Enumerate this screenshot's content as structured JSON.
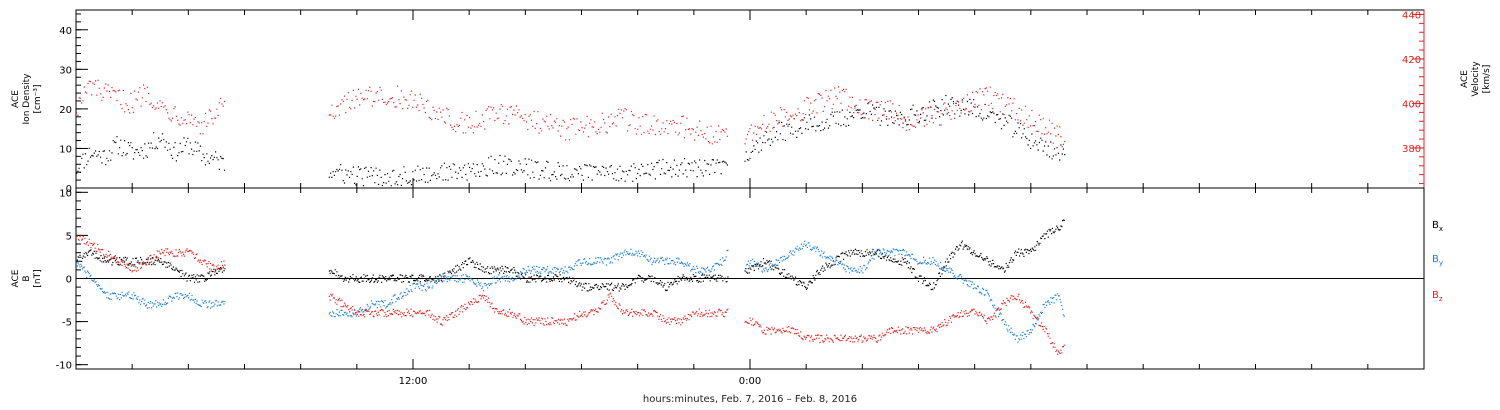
{
  "colors": {
    "black": "#000000",
    "blue": "#1f7fd8",
    "red": "#e0221e",
    "axis": "#000000"
  },
  "x_axis": {
    "label": "hours:minutes, Feb.  7, 2016 – Feb.  8, 2016",
    "range_hours": [
      0,
      48
    ],
    "major_ticks": [
      {
        "hour": 12,
        "label": "12:00"
      },
      {
        "hour": 24,
        "label": "0:00"
      }
    ],
    "minor_ticks_hours": [
      2,
      4,
      6,
      8,
      10,
      14,
      16,
      18,
      20,
      22,
      26,
      28,
      30,
      32,
      34,
      36,
      38,
      40,
      42,
      44,
      46
    ]
  },
  "chart_data": [
    {
      "type": "scatter",
      "title": "",
      "ylabel": [
        "ACE",
        "Ion Density",
        "[cm⁻³]"
      ],
      "ylim": [
        0,
        45
      ],
      "yticks": [
        0,
        10,
        20,
        30,
        40
      ],
      "y2label": [
        "ACE",
        "Velocity",
        "[km/s]"
      ],
      "y2lim": [
        362,
        442
      ],
      "y2ticks": [
        380,
        400,
        420,
        440
      ],
      "series": [
        {
          "color_key": "black",
          "axis": "left",
          "segments": [
            {
              "x": [
                0,
                0.5,
                1.0,
                1.5,
                2.0,
                2.5,
                3.0,
                3.5,
                4.0,
                4.5,
                5.0,
                5.3
              ],
              "y": [
                5,
                9,
                8,
                11,
                9,
                10,
                13,
                9,
                11,
                8,
                7,
                6
              ]
            },
            {
              "x": [
                9.0,
                10,
                11,
                12,
                13,
                14,
                15,
                16,
                17,
                18,
                19,
                20,
                21,
                22,
                23.2
              ],
              "y": [
                4,
                3,
                3,
                3,
                4,
                4,
                6,
                5,
                4,
                4,
                4,
                4,
                5,
                5,
                5
              ]
            },
            {
              "x": [
                23.8,
                24,
                25,
                26,
                27,
                27.5,
                28,
                29,
                30,
                31,
                32,
                33,
                34,
                35.2
              ],
              "y": [
                8,
                10,
                14,
                16,
                17,
                18,
                20,
                17,
                19,
                21,
                20,
                17,
                12,
                8
              ]
            }
          ]
        },
        {
          "color_key": "red",
          "axis": "right",
          "segments": [
            {
              "x": [
                0,
                0.5,
                1.0,
                1.5,
                2.0,
                2.5,
                3.0,
                3.5,
                4.0,
                4.5,
                5.0,
                5.3
              ],
              "y": [
                398,
                408,
                404,
                402,
                400,
                406,
                398,
                396,
                394,
                390,
                396,
                400
              ]
            },
            {
              "x": [
                9.0,
                9.5,
                10,
                10.5,
                11,
                11.5,
                12,
                12.5,
                13,
                13.5,
                14,
                14.5,
                15,
                15.5,
                16,
                16.5,
                17,
                17.5,
                18,
                18.5,
                19,
                19.5,
                20,
                20.5,
                21,
                21.5,
                22,
                22.5,
                23,
                23.2
              ],
              "y": [
                397,
                400,
                402,
                403,
                404,
                403,
                401,
                398,
                395,
                392,
                391,
                393,
                395,
                396,
                393,
                391,
                390,
                388,
                389,
                390,
                392,
                393,
                391,
                390,
                391,
                390,
                388,
                387,
                386,
                386
              ]
            },
            {
              "x": [
                23.8,
                24,
                24.5,
                25,
                25.5,
                26,
                26.5,
                27,
                27.5,
                28,
                28.5,
                29,
                29.5,
                30,
                30.5,
                31,
                31.5,
                32,
                32.5,
                33,
                33.5,
                34,
                34.5,
                35,
                35.2
              ],
              "y": [
                384,
                387,
                390,
                393,
                396,
                398,
                400,
                403,
                401,
                398,
                396,
                397,
                393,
                392,
                394,
                396,
                398,
                401,
                403,
                399,
                397,
                392,
                389,
                385,
                384
              ]
            }
          ]
        }
      ]
    },
    {
      "type": "scatter",
      "title": "",
      "ylabel": [
        "ACE",
        "B",
        "[nT]"
      ],
      "ylim": [
        -10.5,
        10.5
      ],
      "yticks": [
        -10,
        -5,
        0,
        5,
        10
      ],
      "zero_line": true,
      "legend": [
        {
          "name": "Bx",
          "color_key": "black"
        },
        {
          "name": "By",
          "color_key": "blue"
        },
        {
          "name": "Bz",
          "color_key": "red"
        }
      ],
      "series": [
        {
          "name": "Bx",
          "color_key": "black",
          "segments": [
            {
              "x": [
                0,
                0.5,
                1.0,
                1.5,
                2.0,
                2.5,
                3.0,
                3.5,
                4.0,
                4.5,
                5.0,
                5.3
              ],
              "y": [
                2,
                3,
                2,
                2,
                2,
                2,
                2,
                1,
                0,
                0,
                1,
                1
              ]
            },
            {
              "x": [
                9.0,
                9.5,
                10,
                10.5,
                11,
                11.5,
                12,
                12.5,
                13,
                13.5,
                14,
                14.5,
                15,
                15.5,
                16,
                16.5,
                17,
                17.5,
                18,
                18.5,
                19,
                19.5,
                20,
                20.5,
                21,
                21.5,
                22,
                22.5,
                23,
                23.2
              ],
              "y": [
                1,
                0,
                0,
                0,
                0,
                0,
                0,
                0,
                0,
                1,
                2,
                1,
                1,
                1,
                0,
                0,
                0,
                0,
                -1,
                -1,
                -1,
                -1,
                0,
                0,
                -1,
                0,
                0,
                0,
                0,
                0
              ]
            },
            {
              "x": [
                23.8,
                24,
                24.5,
                25,
                25.5,
                26,
                26.5,
                27,
                27.5,
                28,
                28.5,
                29,
                29.5,
                30,
                30.5,
                31,
                31.5,
                32,
                32.5,
                33,
                33.5,
                34,
                34.5,
                35,
                35.2
              ],
              "y": [
                1,
                1,
                2,
                1,
                0,
                -1,
                1,
                2,
                3,
                3,
                3,
                2,
                2,
                0,
                -1,
                2,
                4,
                3,
                2,
                1,
                3,
                3,
                5,
                6,
                7
              ]
            }
          ]
        },
        {
          "name": "By",
          "color_key": "blue",
          "segments": [
            {
              "x": [
                0,
                0.5,
                1.0,
                1.5,
                2.0,
                2.5,
                3.0,
                3.5,
                4.0,
                4.5,
                5.0,
                5.3
              ],
              "y": [
                2,
                0,
                -2,
                -2,
                -2,
                -3,
                -3,
                -2,
                -2,
                -3,
                -3,
                -3
              ]
            },
            {
              "x": [
                9.0,
                9.5,
                10,
                10.5,
                11,
                11.5,
                12,
                12.5,
                13,
                13.5,
                14,
                14.5,
                15,
                15.5,
                16,
                16.5,
                17,
                17.5,
                18,
                18.5,
                19,
                19.5,
                20,
                20.5,
                21,
                21.5,
                22,
                22.5,
                23,
                23.2
              ],
              "y": [
                -4,
                -4,
                -4,
                -3,
                -3,
                -2,
                -1,
                -1,
                0,
                0,
                0,
                -1,
                0,
                0,
                1,
                1,
                1,
                1,
                2,
                2,
                2,
                3,
                3,
                2,
                2,
                2,
                1,
                1,
                2,
                3
              ]
            },
            {
              "x": [
                23.8,
                24,
                24.5,
                25,
                25.5,
                26,
                26.5,
                27,
                27.5,
                28,
                28.5,
                29,
                29.5,
                30,
                30.5,
                31,
                31.5,
                32,
                32.5,
                33,
                33.5,
                34,
                34.5,
                35,
                35.2
              ],
              "y": [
                1,
                2,
                1,
                2,
                3,
                4,
                3,
                2,
                1,
                1,
                3,
                3,
                3,
                2,
                2,
                1,
                0,
                -1,
                -2,
                -5,
                -7,
                -6,
                -3,
                -2,
                -5
              ]
            }
          ]
        },
        {
          "name": "Bz",
          "color_key": "red",
          "segments": [
            {
              "x": [
                0,
                0.5,
                1.0,
                1.5,
                2.0,
                2.5,
                3.0,
                3.5,
                4.0,
                4.5,
                5.0,
                5.3
              ],
              "y": [
                5,
                4,
                3,
                2,
                1,
                2,
                3,
                3,
                3,
                2,
                1,
                2
              ]
            },
            {
              "x": [
                9.0,
                9.5,
                10,
                10.5,
                11,
                11.5,
                12,
                12.5,
                13,
                13.5,
                14,
                14.5,
                15,
                15.5,
                16,
                16.5,
                17,
                17.5,
                18,
                18.5,
                19,
                19.5,
                20,
                20.5,
                21,
                21.5,
                22,
                22.5,
                23,
                23.2
              ],
              "y": [
                -2,
                -3,
                -4,
                -4,
                -4,
                -4,
                -4,
                -4,
                -5,
                -4,
                -3,
                -2,
                -4,
                -4,
                -5,
                -5,
                -5,
                -5,
                -4,
                -4,
                -2,
                -4,
                -4,
                -4,
                -5,
                -5,
                -4,
                -4,
                -4,
                -4
              ]
            },
            {
              "x": [
                23.8,
                24,
                24.5,
                25,
                25.5,
                26,
                26.5,
                27,
                27.5,
                28,
                28.5,
                29,
                29.5,
                30,
                30.5,
                31,
                31.5,
                32,
                32.5,
                33,
                33.5,
                34,
                34.5,
                35,
                35.2
              ],
              "y": [
                -5,
                -5,
                -6,
                -6,
                -6,
                -7,
                -7,
                -7,
                -7,
                -7,
                -7,
                -6,
                -6,
                -6,
                -6,
                -5,
                -4,
                -4,
                -5,
                -3,
                -2,
                -4,
                -6,
                -9,
                -7
              ]
            }
          ]
        }
      ]
    }
  ]
}
